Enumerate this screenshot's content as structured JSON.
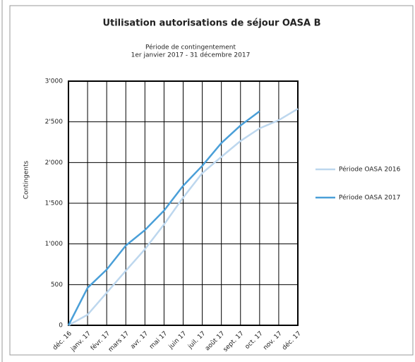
{
  "chart_data": {
    "type": "line",
    "title": "Utilisation autorisations de séjour OASA B",
    "subtitle": [
      "Période de contingentement",
      "1er janvier 2017 - 31 décembre 2017"
    ],
    "y_label": "Contingents",
    "categories": [
      "déc. 16",
      "janv. 17",
      "févr. 17",
      "mars 17",
      "avr. 17",
      "mai 17",
      "juin 17",
      "juil. 17",
      "août 17",
      "sept. 17",
      "oct. 17",
      "nov. 17",
      "déc. 17"
    ],
    "series": [
      {
        "name": "Période OASA 2016",
        "color": "#bdd7ee",
        "values": [
          0,
          130,
          400,
          670,
          935,
          1240,
          1570,
          1870,
          2070,
          2265,
          2420,
          2520,
          2660
        ]
      },
      {
        "name": "Période OASA 2017",
        "color": "#4a9fd8",
        "values": [
          0,
          460,
          685,
          980,
          1170,
          1410,
          1715,
          1960,
          2240,
          2455,
          2630,
          null,
          null
        ]
      }
    ],
    "ylim": [
      0,
      3000
    ],
    "yticks": [
      0,
      {
        "value": 500,
        "label": "500"
      },
      {
        "value": 1000,
        "label": "1'000"
      },
      {
        "value": 1500,
        "label": "1'500"
      },
      {
        "value": 2000,
        "label": "2'000"
      },
      {
        "value": 2500,
        "label": "2'500"
      },
      {
        "value": 3000,
        "label": "3'000"
      }
    ],
    "grid": true,
    "legend": "right"
  }
}
